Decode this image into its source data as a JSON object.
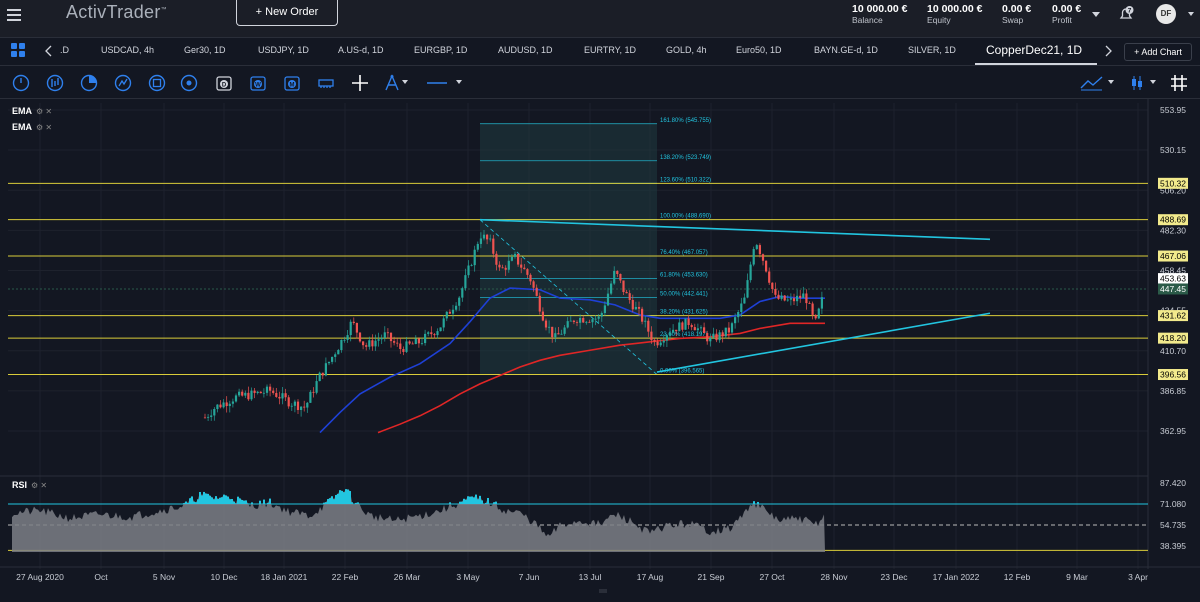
{
  "header": {
    "logo": "ActivTrader",
    "logo_tm": "™",
    "new_order_label": "+ New Order",
    "stats": [
      {
        "value": "10 000.00 €",
        "label": "Balance"
      },
      {
        "value": "10 000.00 €",
        "label": "Equity"
      },
      {
        "value": "0.00 €",
        "label": "Swap"
      },
      {
        "value": "0.00 €",
        "label": "Profit"
      }
    ],
    "notifications_count": "7",
    "avatar_initials": "DF"
  },
  "tabs": {
    "items": [
      ".D",
      "USDCAD, 4h",
      "Ger30, 1D",
      "USDJPY, 1D",
      "A.US-d, 1D",
      "EURGBP, 1D",
      "AUDUSD, 1D",
      "EURTRY, 1D",
      "GOLD, 4h",
      "Euro50, 1D",
      "BAYN.GE-d, 1D",
      "SILVER, 1D"
    ],
    "active": "CopperDec21, 1D",
    "add_chart": "+ Add Chart"
  },
  "indicators": {
    "ema1": "EMA",
    "ema2": "EMA",
    "rsi": "RSI"
  },
  "colors": {
    "up": "#26a69a",
    "down": "#ef5350",
    "ema_fast": "#1e40d6",
    "ema_slow": "#e02626",
    "trend": "#22c5e0",
    "level": "#d9cc3a"
  },
  "price_axis": [
    "553.95",
    "530.15",
    "506.20",
    "482.30",
    "458.45",
    "434.55",
    "410.70",
    "386.85",
    "362.95"
  ],
  "level_badges": [
    {
      "value": "510.32",
      "style": "yellow"
    },
    {
      "value": "488.69",
      "style": "yellow"
    },
    {
      "value": "467.06",
      "style": "yellow"
    },
    {
      "value": "453.63",
      "style": "white"
    },
    {
      "value": "447.45",
      "style": "green"
    },
    {
      "value": "431.62",
      "style": "yellow"
    },
    {
      "value": "418.20",
      "style": "yellow"
    },
    {
      "value": "396.56",
      "style": "yellow"
    }
  ],
  "fib_labels": [
    "161.80% (545.755)",
    "138.20% (523.749)",
    "123.60% (510.322)",
    "100.00% (488.690)",
    "76.40% (467.057)",
    "61.80% (453.630)",
    "50.00% (442.441)",
    "38.20% (431.625)",
    "23.60% (418.197)",
    "0.00% (396.565)"
  ],
  "rsi_axis": [
    "87.420",
    "71.080",
    "54.735",
    "38.395"
  ],
  "time_axis": [
    "27 Aug 2020",
    "Oct",
    "5 Nov",
    "10 Dec",
    "18 Jan 2021",
    "22 Feb",
    "26 Mar",
    "3 May",
    "7 Jun",
    "13 Jul",
    "17 Aug",
    "21 Sep",
    "27 Oct",
    "28 Nov",
    "23 Dec",
    "17 Jan 2022",
    "12 Feb",
    "9 Mar",
    "3 Apr"
  ]
}
